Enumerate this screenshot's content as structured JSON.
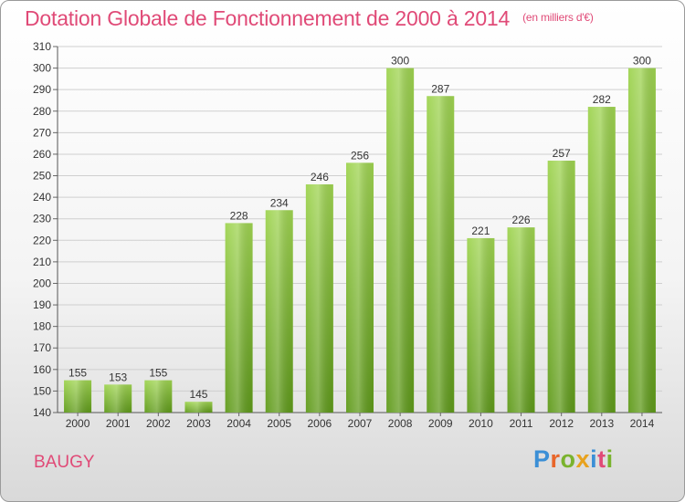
{
  "header": {
    "title": "Dotation Globale de Fonctionnement de 2000 à 2014",
    "subtitle": "(en milliers d'€)"
  },
  "footer": {
    "place": "BAUGY",
    "logo_text": "Proxiti",
    "logo_colors": [
      "#3b8fd6",
      "#e8662a",
      "#7ab32e",
      "#e8a21e",
      "#3b8fd6",
      "#e04a77",
      "#7ab32e"
    ]
  },
  "chart_data": {
    "type": "bar",
    "categories": [
      "2000",
      "2001",
      "2002",
      "2003",
      "2004",
      "2005",
      "2006",
      "2007",
      "2008",
      "2009",
      "2010",
      "2011",
      "2012",
      "2013",
      "2014"
    ],
    "values": [
      155,
      153,
      155,
      145,
      228,
      234,
      246,
      256,
      300,
      287,
      221,
      226,
      257,
      282,
      300
    ],
    "title": "Dotation Globale de Fonctionnement de 2000 à 2014",
    "subtitle": "(en milliers d'€)",
    "ylim": [
      140,
      310
    ],
    "yticks": [
      140,
      150,
      160,
      170,
      180,
      190,
      200,
      210,
      220,
      230,
      240,
      250,
      260,
      270,
      280,
      290,
      300,
      310
    ],
    "grid": true,
    "bar_color": "#8cc63f",
    "bar_color_dark": "#5f9a1a"
  }
}
